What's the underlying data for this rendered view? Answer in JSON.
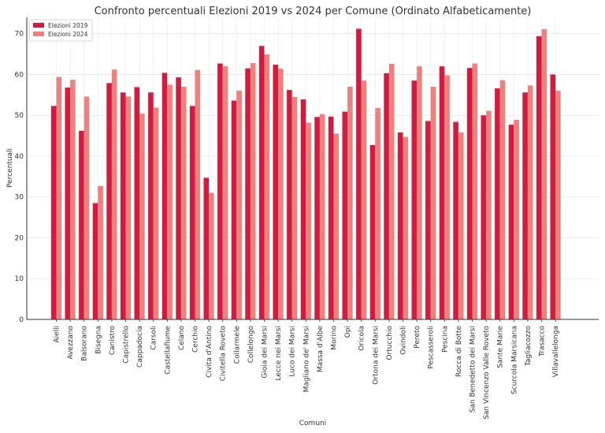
{
  "chart_data": {
    "type": "bar",
    "title": "Confronto percentuali Elezioni 2019 vs 2024 per Comune (Ordinato Alfabeticamente)",
    "xlabel": "Comuni",
    "ylabel": "Percentuali",
    "ylim": [
      0,
      74
    ],
    "yticks": [
      0,
      10,
      20,
      30,
      40,
      50,
      60,
      70
    ],
    "grid": true,
    "legend_position": "top-left",
    "categories": [
      "Aielli",
      "Avezzano",
      "Balsorano",
      "Bisegna",
      "Canistro",
      "Capistrello",
      "Cappadocia",
      "Carsoli",
      "Castellafiume",
      "Celano",
      "Cerchio",
      "Civita d'Antino",
      "Civitella Roveto",
      "Collarmele",
      "Collelongo",
      "Gioia dei Marsi",
      "Lecce nei Marsi",
      "Luco dei Marsi",
      "Magliano de' Marsi",
      "Massa d'Albe",
      "Morino",
      "Opi",
      "Oricola",
      "Ortona dei Marsi",
      "Ortucchio",
      "Ovindoli",
      "Pereto",
      "Pescasseroli",
      "Pescina",
      "Rocca di Botte",
      "San Benedetto dei Marsi",
      "San Vincenzo Valle Roveto",
      "Sante Marie",
      "Scurcola Marsicana",
      "Tagliacozzo",
      "Trasacco",
      "Villavallelonga"
    ],
    "series": [
      {
        "name": "Elezioni 2019",
        "color": "#d31b3f",
        "values": [
          52.3,
          56.8,
          46.2,
          28.5,
          57.9,
          55.6,
          56.9,
          55.6,
          60.4,
          59.3,
          52.3,
          34.7,
          62.7,
          53.6,
          61.5,
          67.0,
          62.4,
          56.2,
          53.9,
          49.6,
          49.7,
          50.9,
          71.2,
          42.7,
          60.3,
          45.8,
          58.5,
          48.6,
          62.0,
          48.4,
          61.6,
          50.0,
          56.6,
          47.7,
          55.6,
          69.4,
          60.0
        ]
      },
      {
        "name": "Elezioni 2024",
        "color": "#ee817e",
        "values": [
          59.4,
          58.7,
          54.6,
          32.7,
          61.2,
          54.6,
          50.4,
          51.9,
          57.5,
          57.0,
          61.1,
          31.0,
          62.0,
          56.0,
          62.8,
          64.9,
          61.4,
          54.5,
          48.2,
          50.3,
          45.5,
          57.0,
          58.5,
          51.8,
          62.6,
          44.7,
          62.0,
          57.0,
          59.8,
          45.8,
          62.7,
          51.1,
          58.6,
          48.9,
          57.3,
          71.1,
          56.0
        ]
      }
    ]
  }
}
